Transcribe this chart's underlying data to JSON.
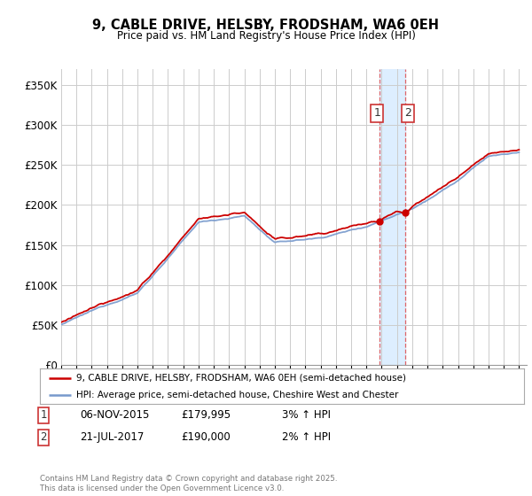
{
  "title": "9, CABLE DRIVE, HELSBY, FRODSHAM, WA6 0EH",
  "subtitle": "Price paid vs. HM Land Registry's House Price Index (HPI)",
  "ylim": [
    0,
    370000
  ],
  "yticks": [
    0,
    50000,
    100000,
    150000,
    200000,
    250000,
    300000,
    350000
  ],
  "ytick_labels": [
    "£0",
    "£50K",
    "£100K",
    "£150K",
    "£200K",
    "£250K",
    "£300K",
    "£350K"
  ],
  "sale1_date": 2015.85,
  "sale1_price": 179995,
  "sale1_label": "1",
  "sale1_text": "06-NOV-2015",
  "sale1_amount": "£179,995",
  "sale1_hpi": "3% ↑ HPI",
  "sale2_date": 2017.55,
  "sale2_price": 190000,
  "sale2_label": "2",
  "sale2_text": "21-JUL-2017",
  "sale2_amount": "£190,000",
  "sale2_hpi": "2% ↑ HPI",
  "line1_color": "#cc0000",
  "line2_color": "#7799cc",
  "highlight_color": "#ddeeff",
  "grid_color": "#cccccc",
  "background_color": "#ffffff",
  "legend1_label": "9, CABLE DRIVE, HELSBY, FRODSHAM, WA6 0EH (semi-detached house)",
  "legend2_label": "HPI: Average price, semi-detached house, Cheshire West and Chester",
  "footer": "Contains HM Land Registry data © Crown copyright and database right 2025.\nThis data is licensed under the Open Government Licence v3.0."
}
